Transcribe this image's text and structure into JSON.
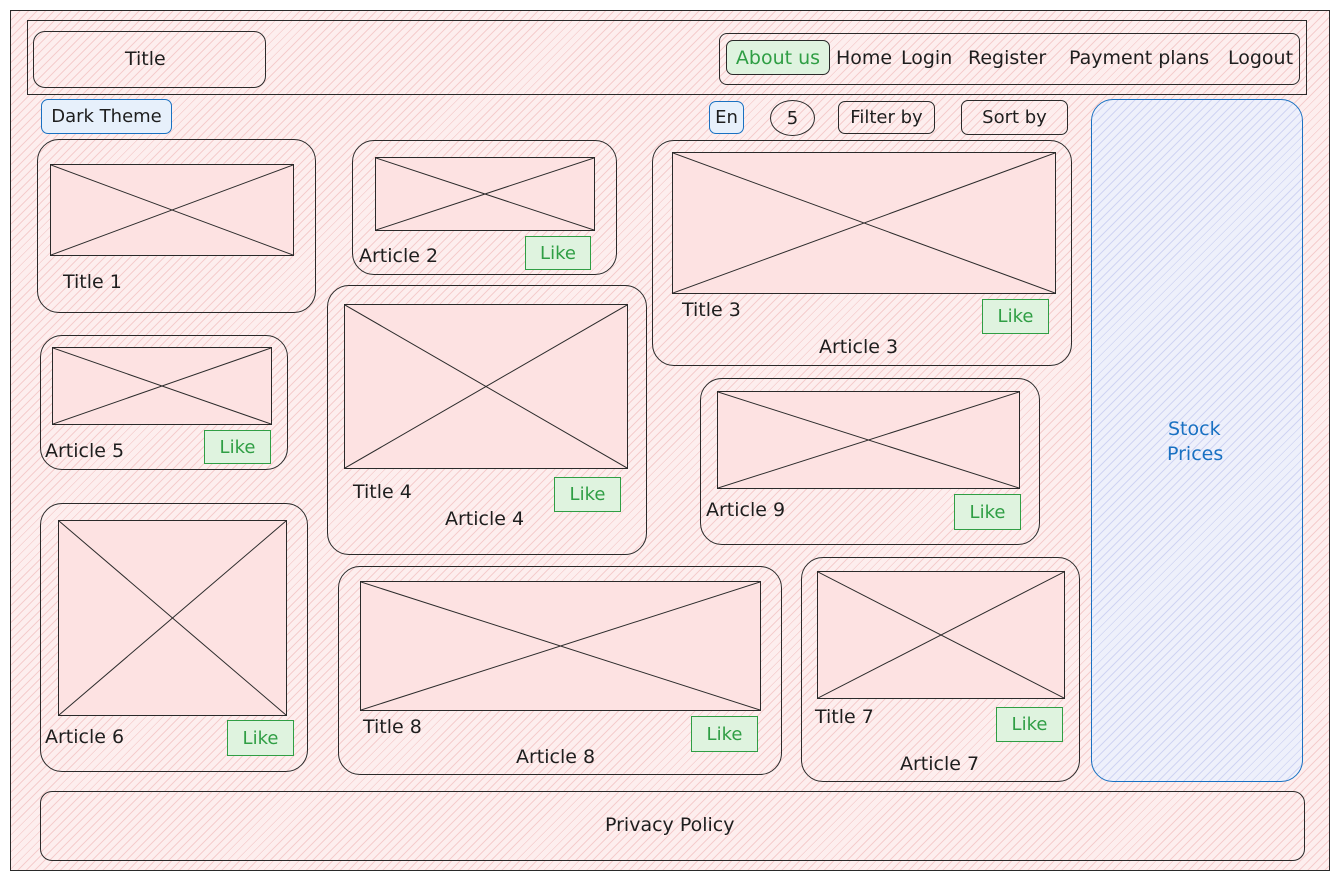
{
  "header": {
    "title": "Title",
    "nav": {
      "about": "About us",
      "home": "Home",
      "login": "Login",
      "register": "Register",
      "payment": "Payment plans",
      "logout": "Logout"
    }
  },
  "toolbar": {
    "dark_theme": "Dark Theme",
    "language": "En",
    "count": "5",
    "filter": "Filter by",
    "sort": "Sort by"
  },
  "like_label": "Like",
  "cards": {
    "c1": {
      "title": "Title 1"
    },
    "c2": {
      "article": "Article 2"
    },
    "c3": {
      "title": "Title 3",
      "article": "Article 3"
    },
    "c4": {
      "title": "Title 4",
      "article": "Article 4"
    },
    "c5": {
      "article": "Article 5"
    },
    "c6": {
      "article": "Article 6"
    },
    "c7": {
      "title": "Title 7",
      "article": "Article 7"
    },
    "c8": {
      "title": "Title 8",
      "article": "Article 8"
    },
    "c9": {
      "article": "Article 9"
    }
  },
  "sidebar": {
    "line1": "Stock",
    "line2": "Prices"
  },
  "footer": {
    "privacy": "Privacy Policy"
  },
  "colors": {
    "accent_green": "#2f9e44",
    "accent_blue": "#1971c2",
    "hatch_red": "#fde2e2"
  }
}
